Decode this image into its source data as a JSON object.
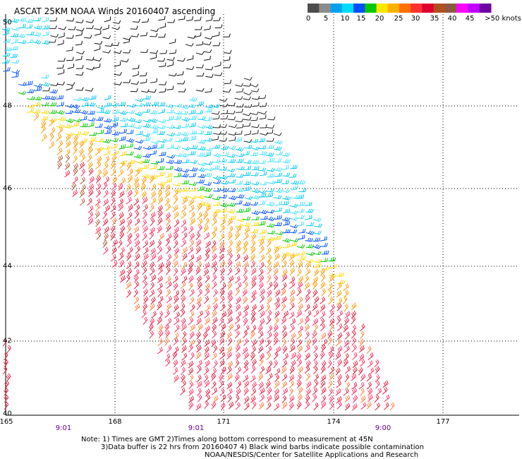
{
  "title": "ASCAT 25KM NOAA Winds 20160407 ascending",
  "legend": {
    "swatches": [
      "#4d4d4d",
      "#8c8c8c",
      "#00a0f0",
      "#00dcff",
      "#0050ff",
      "#00c800",
      "#ffe600",
      "#ffb000",
      "#ff7000",
      "#ff3030",
      "#e00030",
      "#b05020",
      "#8a5a40",
      "#ff00ff",
      "#c000ff",
      "#7000a0"
    ],
    "labels": [
      "0",
      "5",
      "10",
      "15",
      "20",
      "25",
      "30",
      "35",
      "40",
      "45",
      ">50 knots"
    ]
  },
  "axes": {
    "longitudes": [
      "165",
      "168",
      "171",
      "174",
      "177"
    ],
    "latitudes": [
      "50",
      "48",
      "46",
      "44",
      "42",
      "40"
    ]
  },
  "times": [
    "9:01",
    "9:01",
    "9:00"
  ],
  "notes": {
    "line1": "Note: 1) Times are GMT 2)Times along bottom correspond to measurement at 45N",
    "line2": "3)Data buffer is 22 hrs from 20160407 4) Black wind barbs indicate possible contamination",
    "line3": "NOAA/NESDIS/Center for Satellite Applications and Research"
  }
}
